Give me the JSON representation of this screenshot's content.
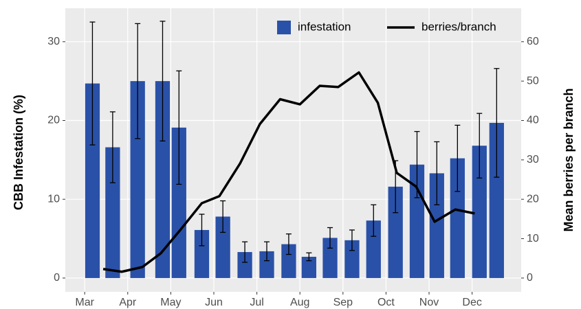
{
  "chart_data": {
    "type": "bar",
    "ylabel": "CBB Infestation (%)",
    "y2label": "Mean berries per branch",
    "xlim": [
      2.55,
      13.14
    ],
    "xticks": [
      {
        "value": 3,
        "label": "Mar"
      },
      {
        "value": 4,
        "label": "Apr"
      },
      {
        "value": 5,
        "label": "May"
      },
      {
        "value": 6,
        "label": "Jun"
      },
      {
        "value": 7,
        "label": "Jul"
      },
      {
        "value": 8,
        "label": "Aug"
      },
      {
        "value": 9,
        "label": "Sep"
      },
      {
        "value": 10,
        "label": "Oct"
      },
      {
        "value": 11,
        "label": "Nov"
      },
      {
        "value": 12,
        "label": "Dec"
      }
    ],
    "ylim": [
      -1.75,
      34.25
    ],
    "yticks": [
      0,
      10,
      20,
      30
    ],
    "y2lim": [
      -3.5,
      68.5
    ],
    "y2ticks": [
      0,
      10,
      20,
      30,
      40,
      50,
      60
    ],
    "grid": true,
    "legend": "top-right",
    "series": [
      {
        "name": "infestation",
        "type": "bar",
        "color": "#2a51a8",
        "x": [
          3.18,
          3.65,
          4.23,
          4.81,
          5.19,
          5.72,
          6.21,
          6.72,
          7.23,
          7.74,
          8.21,
          8.7,
          9.21,
          9.71,
          10.22,
          10.72,
          11.18,
          11.66,
          12.17,
          12.57
        ],
        "values": [
          24.7,
          16.6,
          25.0,
          25.0,
          19.1,
          6.1,
          7.8,
          3.3,
          3.4,
          4.3,
          2.7,
          5.1,
          4.8,
          7.3,
          11.6,
          14.4,
          13.3,
          15.2,
          16.8,
          19.7
        ],
        "errors": [
          7.8,
          4.5,
          7.3,
          7.6,
          7.2,
          2.0,
          2.0,
          1.3,
          1.2,
          1.3,
          0.5,
          1.3,
          1.3,
          2.0,
          3.3,
          4.2,
          4.0,
          4.2,
          4.1,
          6.9
        ]
      },
      {
        "name": "berries/branch",
        "type": "line",
        "color": "#000000",
        "axis": "y2",
        "x": [
          3.43,
          3.86,
          4.34,
          4.77,
          5.22,
          5.72,
          6.13,
          6.61,
          7.07,
          7.54,
          8.0,
          8.46,
          8.89,
          9.37,
          9.81,
          10.25,
          10.7,
          11.13,
          11.61,
          12.06
        ],
        "values": [
          2.3,
          1.6,
          2.8,
          6.3,
          12.2,
          19.0,
          20.8,
          29.1,
          39.1,
          45.4,
          44.1,
          48.8,
          48.5,
          52.2,
          44.5,
          26.7,
          23.2,
          14.3,
          17.4,
          16.4
        ]
      }
    ]
  }
}
